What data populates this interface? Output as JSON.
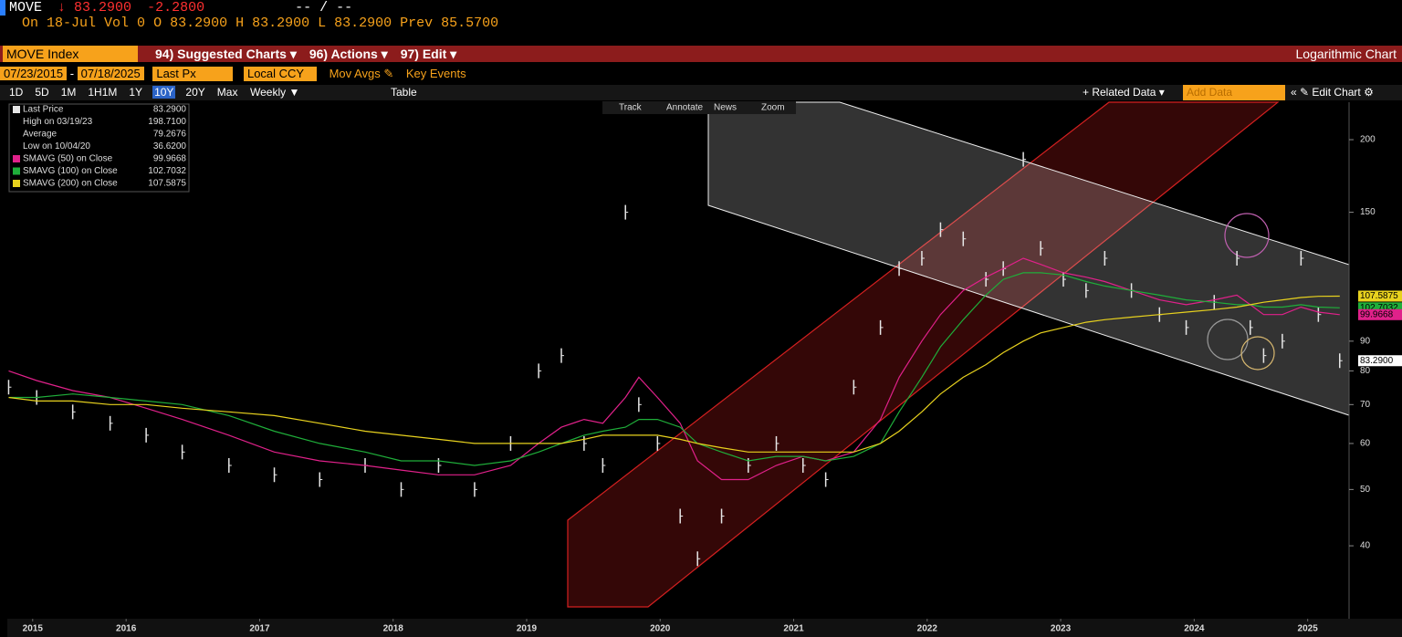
{
  "header": {
    "ticker": "MOVE",
    "last": "↓ 83.2900",
    "change": "-2.2800",
    "bid_ask": "-- / --",
    "date": "On 18-Jul",
    "volume": "Vol 0",
    "open": "O 83.2900",
    "high": "H 83.2900",
    "low": "L 83.2900",
    "prev": "Prev 85.5700"
  },
  "menu": {
    "security": "MOVE Index",
    "items": [
      "94) Suggested Charts ▾",
      "96) Actions ▾",
      "97) Edit ▾"
    ],
    "chart_mode": "Logarithmic Chart"
  },
  "controls": {
    "start": "07/23/2015",
    "end": "07/18/2025",
    "field": "Last Px",
    "currency": "Local CCY",
    "mov_avgs": "Mov Avgs ✎",
    "key_events": "Key Events"
  },
  "toolbar": {
    "periods": [
      "1D",
      "5D",
      "1M",
      "1H1M",
      "1Y",
      "10Y",
      "20Y",
      "Max"
    ],
    "selected": "10Y",
    "frequency": "Weekly ▼",
    "table": "Table",
    "related": "+ Related Data ▾",
    "add_data": "Add Data",
    "edit": "« ✎ Edit Chart ⚙"
  },
  "chart_tools": [
    "Track",
    "Annotate",
    "News",
    "Zoom"
  ],
  "chart_data": {
    "type": "line",
    "log_scale": true,
    "legend_corner": "upper-left",
    "x": [
      2015.62,
      2015.83,
      2016.1,
      2016.38,
      2016.65,
      2016.92,
      2017.27,
      2017.61,
      2017.95,
      2018.29,
      2018.56,
      2018.84,
      2019.11,
      2019.38,
      2019.59,
      2019.76,
      2019.93,
      2020.07,
      2020.24,
      2020.34,
      2020.48,
      2020.65,
      2020.78,
      2020.96,
      2021.16,
      2021.37,
      2021.57,
      2021.74,
      2021.95,
      2022.15,
      2022.29,
      2022.46,
      2022.6,
      2022.77,
      2022.94,
      2023.07,
      2023.22,
      2023.35,
      2023.52,
      2023.69,
      2023.83,
      2024.03,
      2024.24,
      2024.44,
      2024.65,
      2024.82,
      2024.92,
      2025.02,
      2025.16,
      2025.3,
      2025.43,
      2025.59
    ],
    "series": [
      {
        "name": "Last Price",
        "style": "bars",
        "color": "#e6e6e6",
        "value_label": "83.2900",
        "values": [
          75,
          72,
          68,
          65,
          62,
          58,
          55,
          53,
          52,
          55,
          50,
          55,
          50,
          60,
          80,
          85,
          60,
          55,
          150,
          70,
          60,
          45,
          38,
          45,
          55,
          60,
          55,
          52,
          75,
          95,
          120,
          125,
          140,
          135,
          115,
          120,
          185,
          130,
          115,
          110,
          125,
          110,
          100,
          95,
          105,
          125,
          95,
          85,
          90,
          125,
          100,
          83.29
        ]
      },
      {
        "name": "SMAVG (50)  on Close",
        "style": "line",
        "color": "#e0218a",
        "value_label": "99.9668",
        "values": [
          80,
          77,
          74,
          72,
          69,
          66,
          62,
          58,
          56,
          55,
          54,
          53,
          53,
          55,
          60,
          64,
          66,
          65,
          72,
          78,
          72,
          65,
          56,
          52,
          52,
          55,
          57,
          56,
          58,
          66,
          78,
          90,
          100,
          110,
          116,
          120,
          125,
          122,
          118,
          116,
          114,
          110,
          106,
          104,
          106,
          108,
          104,
          100,
          100,
          103,
          101,
          99.97
        ]
      },
      {
        "name": "SMAVG (100)  on Close",
        "style": "line",
        "color": "#1fae3a",
        "value_label": "102.7032",
        "values": [
          72,
          72,
          73,
          72,
          71,
          70,
          67,
          63,
          60,
          58,
          56,
          56,
          55,
          56,
          58,
          60,
          62,
          63,
          64,
          66,
          66,
          64,
          60,
          58,
          56,
          57,
          57,
          56,
          57,
          60,
          68,
          78,
          88,
          98,
          108,
          115,
          118,
          118,
          117,
          114,
          112,
          110,
          108,
          106,
          105,
          104,
          104,
          103,
          103,
          104,
          103,
          102.7
        ]
      },
      {
        "name": "SMAVG (200)  on Close",
        "style": "line",
        "color": "#e8d21e",
        "value_label": "107.5875",
        "values": [
          72,
          71,
          71,
          70,
          70,
          69,
          68,
          67,
          65,
          63,
          62,
          61,
          60,
          60,
          60,
          60,
          61,
          62,
          62,
          62,
          62,
          61,
          60,
          59,
          58,
          58,
          58,
          58,
          58,
          60,
          63,
          68,
          73,
          78,
          82,
          86,
          90,
          93,
          95,
          97,
          98,
          99,
          100,
          101,
          102,
          103,
          104,
          105,
          106,
          107,
          107.5,
          107.59
        ]
      }
    ],
    "stats": [
      {
        "label": "High on 03/19/23",
        "value": "198.7100"
      },
      {
        "label": "Average",
        "value": "79.2676"
      },
      {
        "label": "Low on 10/04/20",
        "value": "36.6200"
      }
    ],
    "price_tags": [
      {
        "value": 107.5875,
        "label": "107.5875",
        "color": "#e8d21e"
      },
      {
        "value": 102.7032,
        "label": "102.7032",
        "color": "#1fae3a"
      },
      {
        "value": 99.9668,
        "label": "99.9668",
        "color": "#e0218a"
      },
      {
        "value": 83.29,
        "label": "83.2900",
        "color": "#ffffff"
      }
    ],
    "xlim": [
      2015.61,
      2025.66
    ],
    "xticks": [
      {
        "value": 2015.8,
        "label": "2015"
      },
      {
        "value": 2016.5,
        "label": "2016"
      },
      {
        "value": 2017.5,
        "label": "2017"
      },
      {
        "value": 2018.5,
        "label": "2018"
      },
      {
        "value": 2019.5,
        "label": "2019"
      },
      {
        "value": 2020.5,
        "label": "2020"
      },
      {
        "value": 2021.5,
        "label": "2021"
      },
      {
        "value": 2022.5,
        "label": "2022"
      },
      {
        "value": 2023.5,
        "label": "2023"
      },
      {
        "value": 2024.5,
        "label": "2024"
      },
      {
        "value": 2025.35,
        "label": "2025"
      }
    ],
    "ylim": [
      31.4,
      232
    ],
    "yticks": [
      40,
      50,
      60,
      70,
      80,
      90,
      150,
      200
    ]
  }
}
